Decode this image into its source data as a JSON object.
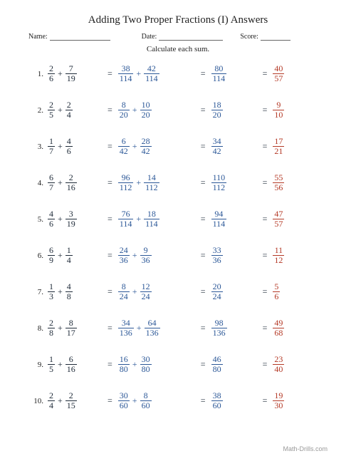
{
  "title": "Adding Two Proper Fractions (I) Answers",
  "meta": {
    "name_label": "Name:",
    "date_label": "Date:",
    "score_label": "Score:"
  },
  "instructions": "Calculate each sum.",
  "footer": "Math-Drills.com",
  "colors": {
    "black": "#1e2a38",
    "blue": "#2b5797",
    "red": "#b43926"
  },
  "problems": [
    {
      "a": {
        "n": "2",
        "d": "6"
      },
      "b": {
        "n": "7",
        "d": "19"
      },
      "s1": {
        "n": "38",
        "d": "114"
      },
      "s2": {
        "n": "42",
        "d": "114"
      },
      "sum": {
        "n": "80",
        "d": "114"
      },
      "ans": {
        "n": "40",
        "d": "57"
      }
    },
    {
      "a": {
        "n": "2",
        "d": "5"
      },
      "b": {
        "n": "2",
        "d": "4"
      },
      "s1": {
        "n": "8",
        "d": "20"
      },
      "s2": {
        "n": "10",
        "d": "20"
      },
      "sum": {
        "n": "18",
        "d": "20"
      },
      "ans": {
        "n": "9",
        "d": "10"
      }
    },
    {
      "a": {
        "n": "1",
        "d": "7"
      },
      "b": {
        "n": "4",
        "d": "6"
      },
      "s1": {
        "n": "6",
        "d": "42"
      },
      "s2": {
        "n": "28",
        "d": "42"
      },
      "sum": {
        "n": "34",
        "d": "42"
      },
      "ans": {
        "n": "17",
        "d": "21"
      }
    },
    {
      "a": {
        "n": "6",
        "d": "7"
      },
      "b": {
        "n": "2",
        "d": "16"
      },
      "s1": {
        "n": "96",
        "d": "112"
      },
      "s2": {
        "n": "14",
        "d": "112"
      },
      "sum": {
        "n": "110",
        "d": "112"
      },
      "ans": {
        "n": "55",
        "d": "56"
      }
    },
    {
      "a": {
        "n": "4",
        "d": "6"
      },
      "b": {
        "n": "3",
        "d": "19"
      },
      "s1": {
        "n": "76",
        "d": "114"
      },
      "s2": {
        "n": "18",
        "d": "114"
      },
      "sum": {
        "n": "94",
        "d": "114"
      },
      "ans": {
        "n": "47",
        "d": "57"
      }
    },
    {
      "a": {
        "n": "6",
        "d": "9"
      },
      "b": {
        "n": "1",
        "d": "4"
      },
      "s1": {
        "n": "24",
        "d": "36"
      },
      "s2": {
        "n": "9",
        "d": "36"
      },
      "sum": {
        "n": "33",
        "d": "36"
      },
      "ans": {
        "n": "11",
        "d": "12"
      }
    },
    {
      "a": {
        "n": "1",
        "d": "3"
      },
      "b": {
        "n": "4",
        "d": "8"
      },
      "s1": {
        "n": "8",
        "d": "24"
      },
      "s2": {
        "n": "12",
        "d": "24"
      },
      "sum": {
        "n": "20",
        "d": "24"
      },
      "ans": {
        "n": "5",
        "d": "6"
      }
    },
    {
      "a": {
        "n": "2",
        "d": "8"
      },
      "b": {
        "n": "8",
        "d": "17"
      },
      "s1": {
        "n": "34",
        "d": "136"
      },
      "s2": {
        "n": "64",
        "d": "136"
      },
      "sum": {
        "n": "98",
        "d": "136"
      },
      "ans": {
        "n": "49",
        "d": "68"
      }
    },
    {
      "a": {
        "n": "1",
        "d": "5"
      },
      "b": {
        "n": "6",
        "d": "16"
      },
      "s1": {
        "n": "16",
        "d": "80"
      },
      "s2": {
        "n": "30",
        "d": "80"
      },
      "sum": {
        "n": "46",
        "d": "80"
      },
      "ans": {
        "n": "23",
        "d": "40"
      }
    },
    {
      "a": {
        "n": "2",
        "d": "4"
      },
      "b": {
        "n": "2",
        "d": "15"
      },
      "s1": {
        "n": "30",
        "d": "60"
      },
      "s2": {
        "n": "8",
        "d": "60"
      },
      "sum": {
        "n": "38",
        "d": "60"
      },
      "ans": {
        "n": "19",
        "d": "30"
      }
    }
  ]
}
